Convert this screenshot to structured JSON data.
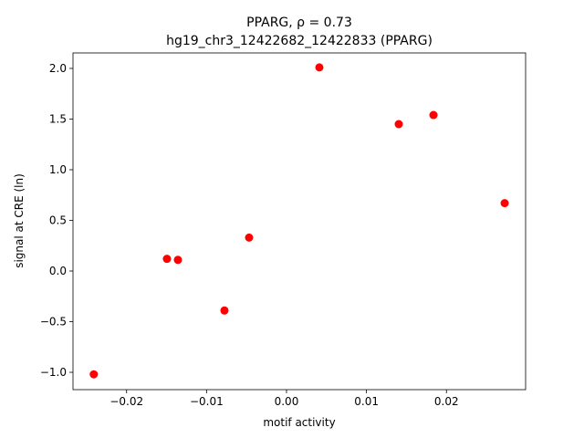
{
  "chart_data": {
    "type": "scatter",
    "title": "PPARG, ρ = 0.73",
    "subtitle": "hg19_chr3_12422682_12422833 (PPARG)",
    "x_label": "motif activity",
    "y_label": "signal at CRE (ln)",
    "color": "#ff0000",
    "x": [
      -0.0241,
      -0.01495,
      -0.01358,
      -0.00776,
      -0.00468,
      0.00411,
      0.01404,
      0.01838,
      0.02728
    ],
    "values": [
      -1.02,
      0.12,
      0.11,
      -0.39,
      0.33,
      2.01,
      1.45,
      1.54,
      0.67
    ],
    "xlim": [
      -0.0267,
      0.0299
    ],
    "ylim": [
      -1.171,
      2.153
    ],
    "xticks": [
      {
        "value": -0.02,
        "label": "−0.02"
      },
      {
        "value": -0.01,
        "label": "−0.01"
      },
      {
        "value": 0,
        "label": "0.00"
      },
      0.01,
      0.02
    ],
    "yticks": [
      {
        "value": -1,
        "label": "−1.0"
      },
      {
        "value": -0.5,
        "label": "−0.5"
      },
      {
        "value": 0,
        "label": "0.0"
      },
      0.5,
      {
        "value": 1,
        "label": "1.0"
      },
      1.5,
      {
        "value": 2,
        "label": "2.0"
      }
    ]
  }
}
